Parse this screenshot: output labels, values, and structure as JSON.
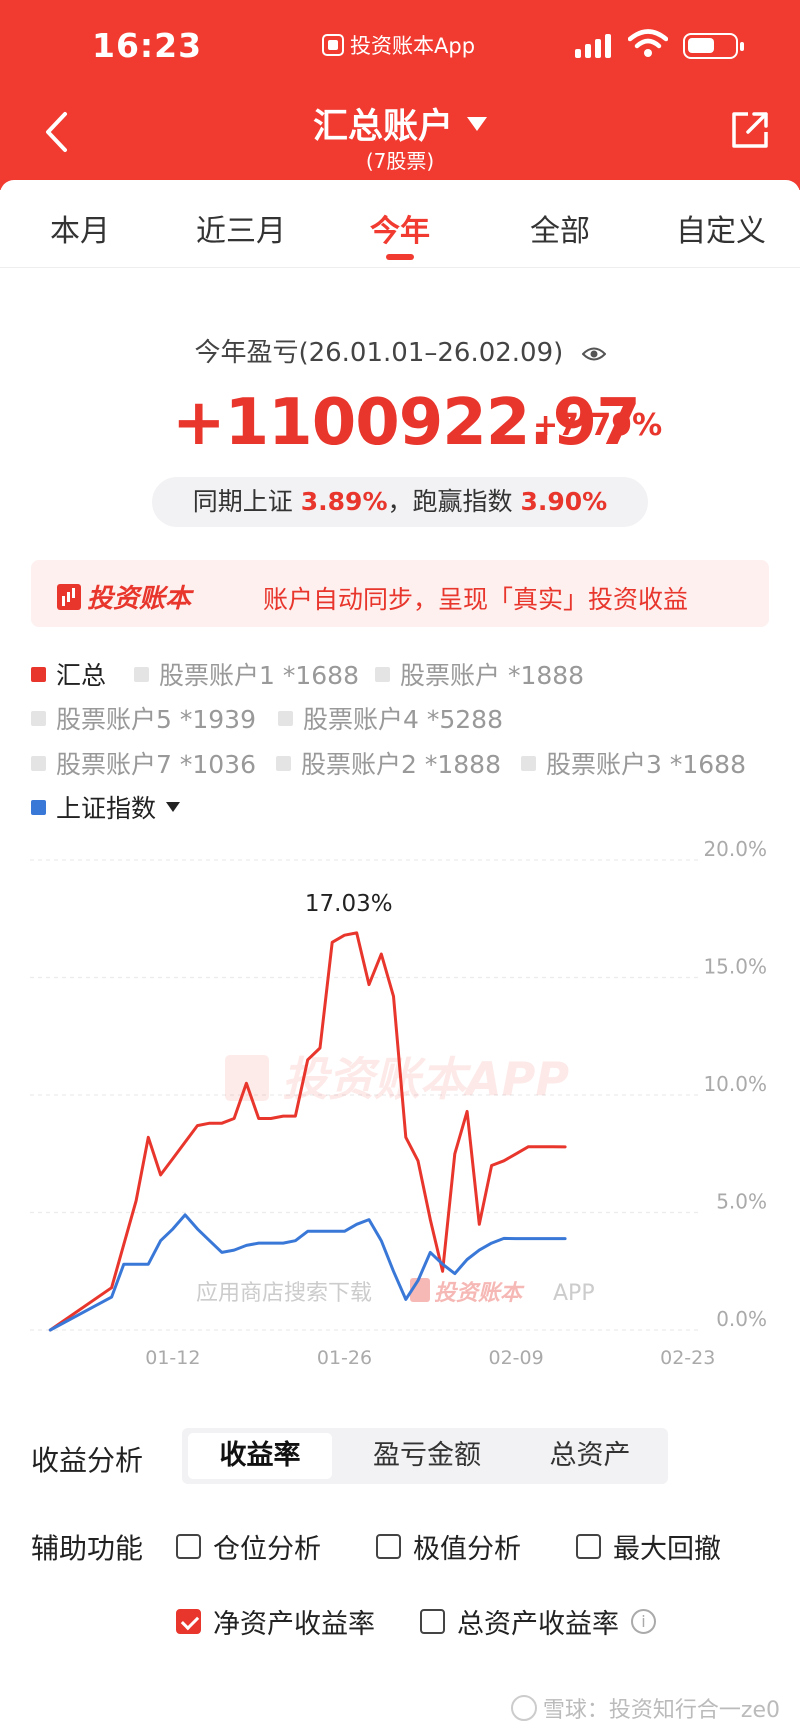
{
  "status": {
    "time": "16:23",
    "app_name": "投资账本App"
  },
  "header": {
    "title": "汇总账户",
    "subtitle": "(7股票)"
  },
  "tabs": [
    "本月",
    "近三月",
    "今年",
    "全部",
    "自定义"
  ],
  "active_tab": "今年",
  "summary": {
    "caption": "今年盈亏(26.01.01–26.02.09)",
    "amount": "+1100922.97",
    "rate": "+7.79%",
    "compare_prefix": "同期上证",
    "index_rate": "3.89%",
    "compare_mid": "，跑赢指数",
    "beat_rate": "3.90%"
  },
  "banner": {
    "logo": "投资账本",
    "text": "账户自动同步，呈现「真实」投资收益"
  },
  "legend": [
    {
      "label": "汇总",
      "active": true,
      "color": "#e8362d"
    },
    {
      "label": "股票账户1 *1688",
      "active": false
    },
    {
      "label": "股票账户 *1888",
      "active": false
    },
    {
      "label": "股票账户5 *1939",
      "active": false
    },
    {
      "label": "股票账户4 *5288",
      "active": false
    },
    {
      "label": "股票账户7 *1036",
      "active": false
    },
    {
      "label": "股票账户2 *1888",
      "active": false
    },
    {
      "label": "股票账户3 *1688",
      "active": false
    },
    {
      "label": "上证指数",
      "active": true,
      "color": "#3a78d8"
    }
  ],
  "chart_data": {
    "type": "line",
    "x_ticks": [
      "01-12",
      "01-26",
      "02-09",
      "02-23"
    ],
    "y_ticks": [
      "20.0%",
      "15.0%",
      "10.0%",
      "5.0%",
      "0.0%"
    ],
    "ylim": [
      0,
      20
    ],
    "x_domain_days": [
      0,
      54
    ],
    "peak_label": "17.03%",
    "watermark": "投资账本APP",
    "watermark2": "应用商店搜索下载",
    "watermark2_brand": "投资账本",
    "watermark2_suffix": "APP",
    "series": [
      {
        "name": "汇总",
        "color": "#e8362d",
        "x": [
          1,
          6,
          8,
          9,
          10,
          11,
          13,
          14,
          15,
          16,
          17,
          18,
          19,
          20,
          21,
          22,
          23,
          24,
          25,
          26,
          27,
          28,
          29,
          30,
          31,
          32,
          33,
          34,
          35,
          36,
          37,
          38,
          39,
          40,
          41,
          42,
          43
        ],
        "values": [
          0,
          1.8,
          5.5,
          8.2,
          6.6,
          7.3,
          8.7,
          8.8,
          8.8,
          9.0,
          10.5,
          9.0,
          9.0,
          9.1,
          9.1,
          11.5,
          12.0,
          16.5,
          16.8,
          16.9,
          14.7,
          16.0,
          14.2,
          8.2,
          7.2,
          4.7,
          2.5,
          7.5,
          9.3,
          4.5,
          7.0,
          7.2,
          7.5,
          7.8,
          7.8,
          7.8,
          7.79
        ]
      },
      {
        "name": "上证指数",
        "color": "#3a78d8",
        "x": [
          1,
          6,
          7,
          8,
          9,
          10,
          11,
          12,
          13,
          14,
          15,
          16,
          17,
          18,
          19,
          20,
          21,
          22,
          23,
          24,
          25,
          26,
          27,
          28,
          29,
          30,
          31,
          32,
          33,
          34,
          35,
          36,
          37,
          38,
          39,
          40,
          41,
          42,
          43
        ],
        "values": [
          0,
          1.4,
          2.8,
          2.8,
          2.8,
          3.8,
          4.3,
          4.9,
          4.3,
          3.8,
          3.3,
          3.4,
          3.6,
          3.7,
          3.7,
          3.7,
          3.8,
          4.2,
          4.2,
          4.2,
          4.2,
          4.5,
          4.7,
          3.8,
          2.5,
          1.3,
          2.1,
          3.3,
          2.8,
          2.4,
          3.0,
          3.4,
          3.7,
          3.9,
          3.89,
          3.89,
          3.89,
          3.89,
          3.89
        ]
      }
    ]
  },
  "analysis": {
    "label": "收益分析",
    "options": [
      "收益率",
      "盈亏金额",
      "总资产"
    ],
    "selected": "收益率"
  },
  "aux": {
    "label": "辅助功能",
    "items": [
      {
        "label": "仓位分析",
        "checked": false
      },
      {
        "label": "极值分析",
        "checked": false
      },
      {
        "label": "最大回撤",
        "checked": false
      },
      {
        "label": "净资产收益率",
        "checked": true
      },
      {
        "label": "总资产收益率",
        "checked": false
      }
    ]
  },
  "footer": {
    "text": "雪球：投资知行合一ze0"
  }
}
